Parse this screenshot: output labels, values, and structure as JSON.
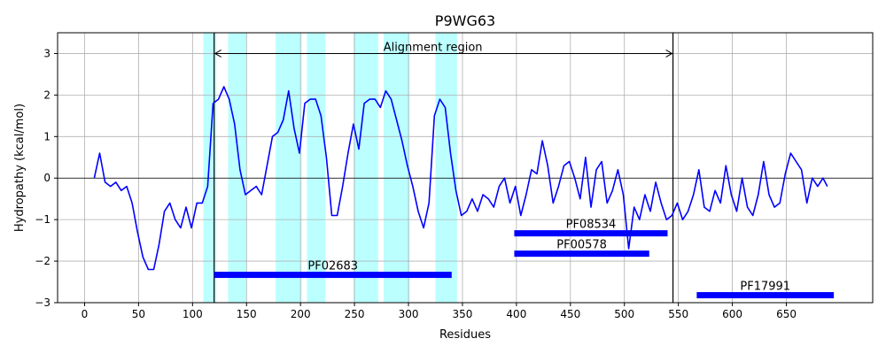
{
  "chart_data": {
    "type": "line",
    "title": "P9WG63",
    "xlabel": "Residues",
    "ylabel": "Hydropathy (kcal/mol)",
    "xlim": [
      -25,
      730
    ],
    "ylim": [
      -3,
      3.5
    ],
    "xticks": [
      0,
      50,
      100,
      150,
      200,
      250,
      300,
      350,
      400,
      450,
      500,
      550,
      600,
      650
    ],
    "yticks": [
      -3,
      -2,
      -1,
      0,
      1,
      2,
      3
    ],
    "grid": true,
    "series": [
      {
        "color": "#0000ff",
        "x": [
          9,
          14,
          19,
          24,
          29,
          34,
          39,
          44,
          49,
          54,
          59,
          64,
          69,
          74,
          79,
          84,
          89,
          94,
          99,
          104,
          109,
          114,
          119,
          124,
          129,
          134,
          139,
          144,
          149,
          154,
          159,
          164,
          169,
          174,
          179,
          184,
          189,
          194,
          199,
          204,
          209,
          214,
          219,
          224,
          229,
          234,
          239,
          244,
          249,
          254,
          259,
          264,
          269,
          274,
          279,
          284,
          289,
          294,
          299,
          304,
          309,
          314,
          319,
          324,
          329,
          334,
          339,
          344,
          349,
          354,
          359,
          364,
          369,
          374,
          379,
          384,
          389,
          394,
          399,
          404,
          409,
          414,
          419,
          424,
          429,
          434,
          439,
          444,
          449,
          454,
          459,
          464,
          469,
          474,
          479,
          484,
          489,
          494,
          499,
          504,
          509,
          514,
          519,
          524,
          529,
          534,
          539,
          544,
          549,
          554,
          559,
          564,
          569,
          574,
          579,
          584,
          589,
          594,
          599,
          604,
          609,
          614,
          619,
          624,
          629,
          634,
          639,
          644,
          649,
          654,
          659,
          664,
          669,
          674,
          679,
          684,
          688
        ],
        "y": [
          0.0,
          0.6,
          -0.1,
          -0.2,
          -0.1,
          -0.3,
          -0.2,
          -0.6,
          -1.3,
          -1.9,
          -2.2,
          -2.2,
          -1.6,
          -0.8,
          -0.6,
          -1.0,
          -1.2,
          -0.7,
          -1.2,
          -0.6,
          -0.6,
          -0.2,
          1.8,
          1.9,
          2.2,
          1.9,
          1.3,
          0.2,
          -0.4,
          -0.3,
          -0.2,
          -0.4,
          0.3,
          1.0,
          1.1,
          1.4,
          2.1,
          1.2,
          0.6,
          1.8,
          1.9,
          1.9,
          1.5,
          0.5,
          -0.9,
          -0.9,
          -0.2,
          0.6,
          1.3,
          0.7,
          1.8,
          1.9,
          1.9,
          1.7,
          2.1,
          1.9,
          1.4,
          0.9,
          0.3,
          -0.2,
          -0.8,
          -1.2,
          -0.6,
          1.5,
          1.9,
          1.7,
          0.6,
          -0.3,
          -0.9,
          -0.8,
          -0.5,
          -0.8,
          -0.4,
          -0.5,
          -0.7,
          -0.2,
          0.0,
          -0.6,
          -0.2,
          -0.9,
          -0.4,
          0.2,
          0.1,
          0.9,
          0.3,
          -0.6,
          -0.2,
          0.3,
          0.4,
          0.0,
          -0.5,
          0.5,
          -0.7,
          0.2,
          0.4,
          -0.6,
          -0.3,
          0.2,
          -0.4,
          -1.7,
          -0.7,
          -1.0,
          -0.4,
          -0.8,
          -0.1,
          -0.6,
          -1.0,
          -0.9,
          -0.6,
          -1.0,
          -0.8,
          -0.4,
          0.2,
          -0.7,
          -0.8,
          -0.3,
          -0.6,
          0.3,
          -0.4,
          -0.8,
          0.0,
          -0.7,
          -0.9,
          -0.4,
          0.4,
          -0.4,
          -0.7,
          -0.6,
          0.1,
          0.6,
          0.4,
          0.2,
          -0.6,
          0.0,
          -0.2,
          0.0,
          -0.2
        ]
      }
    ],
    "highlight_regions": [
      [
        110,
        122
      ],
      [
        133,
        150
      ],
      [
        177,
        201
      ],
      [
        206,
        223
      ],
      [
        249,
        272
      ],
      [
        277,
        301
      ],
      [
        325,
        345
      ]
    ],
    "vertical_lines": [
      120,
      545
    ],
    "alignment_arrow": {
      "x1": 120,
      "x2": 545,
      "y": 3.0,
      "label": "Alignment region"
    },
    "domains": [
      {
        "label": "PF08534",
        "x1": 398,
        "x2": 540,
        "y": -1.33
      },
      {
        "label": "PF00578",
        "x1": 398,
        "x2": 523,
        "y": -1.82
      },
      {
        "label": "PF02683",
        "x1": 120,
        "x2": 340,
        "y": -2.33
      },
      {
        "label": "PF17991",
        "x1": 567,
        "x2": 694,
        "y": -2.82
      }
    ]
  }
}
